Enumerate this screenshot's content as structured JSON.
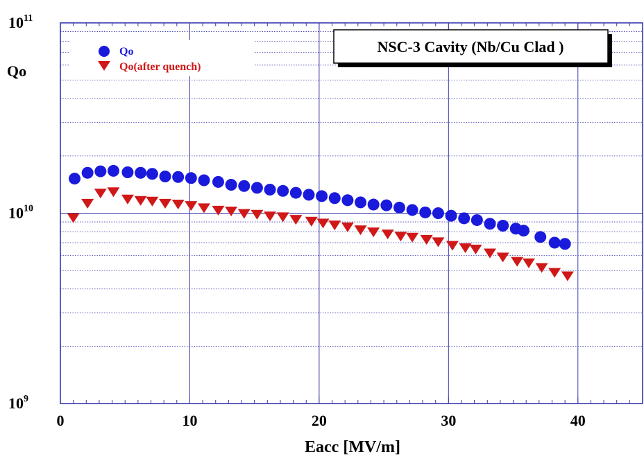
{
  "chart_data": {
    "type": "scatter",
    "title": "NSC-3 Cavity (Nb/Cu Clad )",
    "xlabel": "Eacc [MV/m]",
    "ylabel": "Qo",
    "xlim": [
      0,
      45
    ],
    "ylim": [
      1000000000.0,
      100000000000.0
    ],
    "yscale": "log",
    "grid": true,
    "legend_position": "top-left",
    "x_ticks": [
      {
        "value": 0,
        "label": "0"
      },
      {
        "value": 10,
        "label": "10"
      },
      {
        "value": 20,
        "label": "20"
      },
      {
        "value": 30,
        "label": "30"
      },
      {
        "value": 40,
        "label": "40"
      }
    ],
    "y_ticks": [
      {
        "value": 1000000000.0,
        "base": "10",
        "exp": "9"
      },
      {
        "value": 10000000000.0,
        "base": "10",
        "exp": "10"
      },
      {
        "value": 100000000000.0,
        "base": "10",
        "exp": "11"
      }
    ],
    "series": [
      {
        "name": "Qo",
        "marker": "circle",
        "color": "#1a1adc",
        "points": [
          [
            1.1,
            15200000000.0
          ],
          [
            2.1,
            16300000000.0
          ],
          [
            3.1,
            16600000000.0
          ],
          [
            4.1,
            16700000000.0
          ],
          [
            5.2,
            16400000000.0
          ],
          [
            6.2,
            16300000000.0
          ],
          [
            7.1,
            16100000000.0
          ],
          [
            8.1,
            15600000000.0
          ],
          [
            9.1,
            15500000000.0
          ],
          [
            10.1,
            15300000000.0
          ],
          [
            11.1,
            14900000000.0
          ],
          [
            12.2,
            14600000000.0
          ],
          [
            13.2,
            14100000000.0
          ],
          [
            14.2,
            13900000000.0
          ],
          [
            15.2,
            13600000000.0
          ],
          [
            16.2,
            13300000000.0
          ],
          [
            17.2,
            13100000000.0
          ],
          [
            18.2,
            12800000000.0
          ],
          [
            19.2,
            12500000000.0
          ],
          [
            20.2,
            12300000000.0
          ],
          [
            21.2,
            12000000000.0
          ],
          [
            22.2,
            11700000000.0
          ],
          [
            23.2,
            11400000000.0
          ],
          [
            24.2,
            11100000000.0
          ],
          [
            25.2,
            11000000000.0
          ],
          [
            26.2,
            10700000000.0
          ],
          [
            27.2,
            10400000000.0
          ],
          [
            28.2,
            10100000000.0
          ],
          [
            29.2,
            10000000000.0
          ],
          [
            30.2,
            9700000000.0
          ],
          [
            31.2,
            9400000000.0
          ],
          [
            32.2,
            9200000000.0
          ],
          [
            33.2,
            8800000000.0
          ],
          [
            34.2,
            8600000000.0
          ],
          [
            35.2,
            8300000000.0
          ],
          [
            35.8,
            8100000000.0
          ],
          [
            37.1,
            7500000000.0
          ],
          [
            38.2,
            7000000000.0
          ],
          [
            39.0,
            6900000000.0
          ]
        ]
      },
      {
        "name": "Qo(after quench)",
        "marker": "triangle-down",
        "color": "#d01818",
        "points": [
          [
            1.0,
            9500000000.0
          ],
          [
            2.1,
            11300000000.0
          ],
          [
            3.1,
            12800000000.0
          ],
          [
            4.1,
            13000000000.0
          ],
          [
            5.2,
            11900000000.0
          ],
          [
            6.2,
            11700000000.0
          ],
          [
            7.1,
            11600000000.0
          ],
          [
            8.1,
            11300000000.0
          ],
          [
            9.1,
            11200000000.0
          ],
          [
            10.1,
            11000000000.0
          ],
          [
            11.1,
            10700000000.0
          ],
          [
            12.2,
            10400000000.0
          ],
          [
            13.2,
            10300000000.0
          ],
          [
            14.2,
            10000000000.0
          ],
          [
            15.2,
            9900000000.0
          ],
          [
            16.2,
            9700000000.0
          ],
          [
            17.2,
            9600000000.0
          ],
          [
            18.2,
            9300000000.0
          ],
          [
            19.4,
            9100000000.0
          ],
          [
            20.3,
            8900000000.0
          ],
          [
            21.2,
            8700000000.0
          ],
          [
            22.2,
            8500000000.0
          ],
          [
            23.2,
            8200000000.0
          ],
          [
            24.2,
            8000000000.0
          ],
          [
            25.3,
            7800000000.0
          ],
          [
            26.3,
            7600000000.0
          ],
          [
            27.2,
            7500000000.0
          ],
          [
            28.3,
            7300000000.0
          ],
          [
            29.2,
            7100000000.0
          ],
          [
            30.3,
            6800000000.0
          ],
          [
            31.3,
            6600000000.0
          ],
          [
            32.1,
            6500000000.0
          ],
          [
            33.2,
            6200000000.0
          ],
          [
            34.2,
            5900000000.0
          ],
          [
            35.3,
            5600000000.0
          ],
          [
            36.2,
            5500000000.0
          ],
          [
            37.2,
            5200000000.0
          ],
          [
            38.2,
            4900000000.0
          ],
          [
            39.2,
            4700000000.0
          ]
        ]
      }
    ]
  }
}
